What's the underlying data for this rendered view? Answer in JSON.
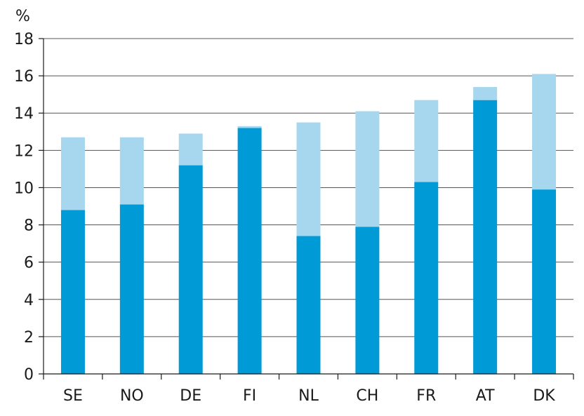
{
  "chart_data": {
    "type": "bar",
    "stacked": true,
    "ylabel": "%",
    "ylim": [
      0,
      18
    ],
    "yticks": [
      0,
      2,
      4,
      6,
      8,
      10,
      12,
      14,
      16,
      18
    ],
    "grid": true,
    "categories": [
      "SE",
      "NO",
      "DE",
      "FI",
      "NL",
      "CH",
      "FR",
      "AT",
      "DK"
    ],
    "series": [
      {
        "color": "#009AD6",
        "values": [
          8.8,
          9.1,
          11.2,
          13.2,
          7.4,
          7.9,
          10.3,
          14.7,
          9.9
        ]
      },
      {
        "color": "#A7D7EE",
        "values": [
          3.9,
          3.6,
          1.7,
          0.1,
          6.1,
          6.2,
          4.4,
          0.7,
          6.2
        ]
      }
    ],
    "colors": {
      "grid": "#555555",
      "axis": "#1a1a1a"
    }
  }
}
